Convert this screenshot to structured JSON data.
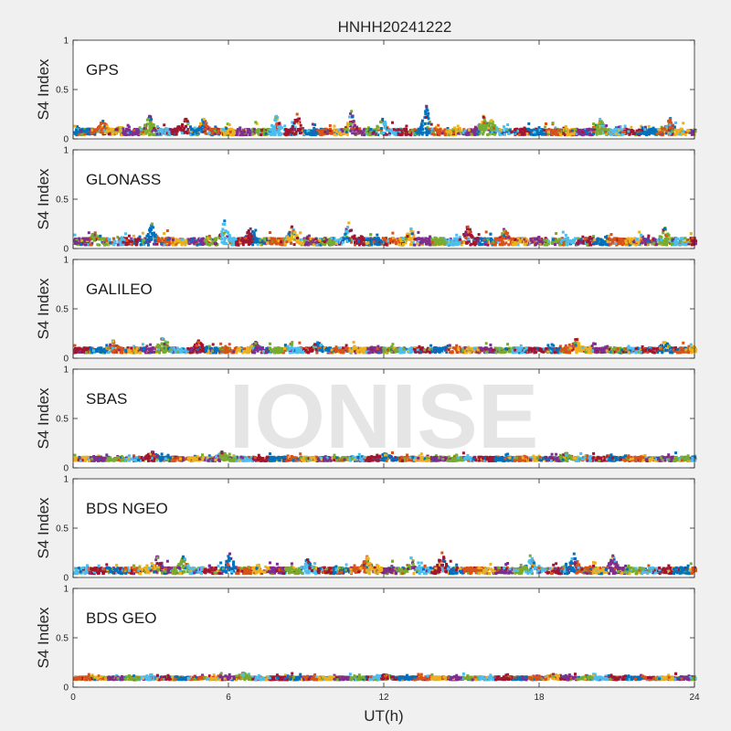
{
  "watermark": "IONISE",
  "chart_data": {
    "type": "scatter",
    "title": "HNHH20241222",
    "xlabel": "UT(h)",
    "ylabel": "S4 Index",
    "xlim": [
      0,
      24
    ],
    "ylim": [
      0,
      1
    ],
    "xticks": [
      0,
      6,
      12,
      18,
      24
    ],
    "yticks": [
      0,
      0.5,
      1
    ],
    "ytick_labels": [
      "0",
      "0.5",
      "1"
    ],
    "grid": false,
    "series_colors": [
      "#0072bd",
      "#d95319",
      "#edb120",
      "#7e2f8e",
      "#77ac30",
      "#4dbeee",
      "#a2142f"
    ],
    "panels": [
      {
        "label": "GPS",
        "baseline": 0.07,
        "spread": 0.06,
        "peaks": [
          [
            1.1,
            0.18
          ],
          [
            2.9,
            0.23
          ],
          [
            4.3,
            0.2
          ],
          [
            5.0,
            0.2
          ],
          [
            7.8,
            0.23
          ],
          [
            8.6,
            0.25
          ],
          [
            10.7,
            0.28
          ],
          [
            11.9,
            0.2
          ],
          [
            13.6,
            0.33
          ],
          [
            15.8,
            0.22
          ],
          [
            16.1,
            0.18
          ],
          [
            20.3,
            0.2
          ],
          [
            23.0,
            0.2
          ]
        ]
      },
      {
        "label": "GLONASS",
        "baseline": 0.07,
        "spread": 0.07,
        "peaks": [
          [
            0.8,
            0.16
          ],
          [
            3.0,
            0.25
          ],
          [
            5.8,
            0.28
          ],
          [
            6.8,
            0.2
          ],
          [
            8.4,
            0.22
          ],
          [
            10.6,
            0.26
          ],
          [
            13.0,
            0.2
          ],
          [
            15.2,
            0.22
          ],
          [
            16.6,
            0.18
          ],
          [
            22.8,
            0.2
          ]
        ]
      },
      {
        "label": "GALILEO",
        "baseline": 0.08,
        "spread": 0.05,
        "peaks": [
          [
            1.5,
            0.17
          ],
          [
            3.4,
            0.2
          ],
          [
            4.8,
            0.16
          ],
          [
            7.0,
            0.15
          ],
          [
            9.4,
            0.15
          ],
          [
            14.5,
            0.13
          ],
          [
            19.4,
            0.19
          ],
          [
            22.8,
            0.16
          ]
        ]
      },
      {
        "label": "SBAS",
        "baseline": 0.09,
        "spread": 0.04,
        "peaks": [
          [
            3.0,
            0.16
          ],
          [
            5.7,
            0.15
          ],
          [
            12.0,
            0.13
          ],
          [
            19.0,
            0.13
          ]
        ]
      },
      {
        "label": "BDS NGEO",
        "baseline": 0.07,
        "spread": 0.06,
        "peaks": [
          [
            3.2,
            0.2
          ],
          [
            4.2,
            0.21
          ],
          [
            6.0,
            0.24
          ],
          [
            9.0,
            0.18
          ],
          [
            11.3,
            0.2
          ],
          [
            13.0,
            0.2
          ],
          [
            14.2,
            0.25
          ],
          [
            17.6,
            0.22
          ],
          [
            19.3,
            0.24
          ],
          [
            20.8,
            0.22
          ]
        ]
      },
      {
        "label": "BDS GEO",
        "baseline": 0.09,
        "spread": 0.03,
        "peaks": [
          [
            6.5,
            0.13
          ],
          [
            12.0,
            0.11
          ],
          [
            18.5,
            0.11
          ]
        ]
      }
    ]
  }
}
